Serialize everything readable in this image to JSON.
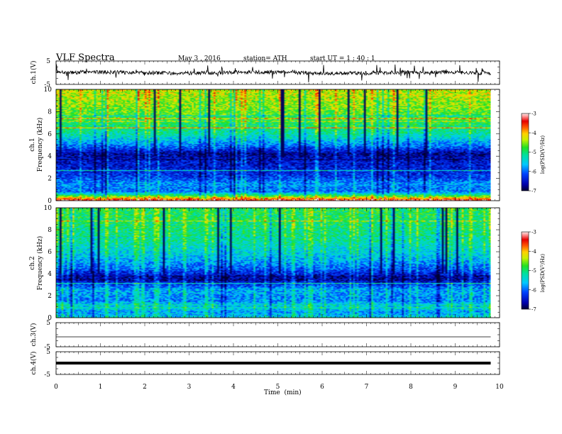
{
  "header": {
    "title": "VLF  Spectra",
    "date": "May 3  , 2016",
    "station": "station= ATH",
    "start": "start  UT  =   1  : 40 : 1"
  },
  "chart_data": [
    {
      "type": "line",
      "panel": "ch1-waveform",
      "ylabel": "ch.1(V)",
      "ylim": [
        -5,
        5
      ],
      "y_ticks": [
        "5",
        "-5"
      ],
      "xlim": [
        0,
        10
      ],
      "line_color": "#000000"
    },
    {
      "type": "heatmap",
      "panel": "ch1-spectrogram",
      "ylabel": "ch.1\nFrequency (kHz)",
      "ylim": [
        0,
        10
      ],
      "y_ticks": [
        "0",
        "2",
        "4",
        "6",
        "8",
        "10"
      ],
      "xlim": [
        0,
        9.8
      ],
      "colorbar": {
        "label": "log(PSD(V²/Hz)",
        "range": [
          -7,
          -3
        ],
        "ticks": [
          "-3",
          "-4",
          "-5",
          "-6",
          "-7"
        ]
      },
      "level_profile": [
        {
          "freq_khz": 0.0,
          "log_psd": -3.3
        },
        {
          "freq_khz": 0.4,
          "log_psd": -4.8
        },
        {
          "freq_khz": 0.8,
          "log_psd": -6.0
        },
        {
          "freq_khz": 1.5,
          "log_psd": -5.8
        },
        {
          "freq_khz": 2.0,
          "log_psd": -6.2
        },
        {
          "freq_khz": 2.8,
          "log_psd": -6.4
        },
        {
          "freq_khz": 3.5,
          "log_psd": -6.5
        },
        {
          "freq_khz": 4.2,
          "log_psd": -6.7
        },
        {
          "freq_khz": 5.0,
          "log_psd": -5.9
        },
        {
          "freq_khz": 6.0,
          "log_psd": -5.2
        },
        {
          "freq_khz": 7.0,
          "log_psd": -4.9
        },
        {
          "freq_khz": 8.5,
          "log_psd": -4.5
        },
        {
          "freq_khz": 10.0,
          "log_psd": -4.3
        }
      ]
    },
    {
      "type": "heatmap",
      "panel": "ch2-spectrogram",
      "ylabel": "ch.2\nFrequency (kHz)",
      "ylim": [
        0,
        10
      ],
      "y_ticks": [
        "0",
        "2",
        "4",
        "6",
        "8",
        "10"
      ],
      "xlim": [
        0,
        9.8
      ],
      "colorbar": {
        "label": "log(PSD(V²/Hz)",
        "range": [
          -7,
          -3
        ],
        "ticks": [
          "-3",
          "-4",
          "-5",
          "-6",
          "-7"
        ]
      },
      "level_profile": [
        {
          "freq_khz": 0.0,
          "log_psd": -5.5
        },
        {
          "freq_khz": 0.5,
          "log_psd": -5.8
        },
        {
          "freq_khz": 1.0,
          "log_psd": -5.2
        },
        {
          "freq_khz": 1.5,
          "log_psd": -5.9
        },
        {
          "freq_khz": 2.5,
          "log_psd": -5.7
        },
        {
          "freq_khz": 3.5,
          "log_psd": -6.8
        },
        {
          "freq_khz": 4.0,
          "log_psd": -6.4
        },
        {
          "freq_khz": 4.6,
          "log_psd": -6.0
        },
        {
          "freq_khz": 5.5,
          "log_psd": -5.6
        },
        {
          "freq_khz": 7.0,
          "log_psd": -5.2
        },
        {
          "freq_khz": 8.5,
          "log_psd": -5.0
        },
        {
          "freq_khz": 10.0,
          "log_psd": -4.9
        }
      ]
    },
    {
      "type": "line",
      "panel": "ch3-waveform",
      "ylabel": "ch.3(V)",
      "ylim": [
        -5,
        5
      ],
      "y_ticks": [
        "5",
        "-5"
      ],
      "values_const": 0
    },
    {
      "type": "line",
      "panel": "ch4-waveform",
      "ylabel": "ch.4(V)",
      "ylim": [
        -5,
        5
      ],
      "y_ticks": [
        "5",
        "-5"
      ],
      "values_const": 0,
      "xlabel": "Time  (min)",
      "x_ticks": [
        "0",
        "1",
        "2",
        "3",
        "4",
        "5",
        "6",
        "7",
        "8",
        "9",
        "10"
      ],
      "xlim": [
        0,
        10
      ]
    }
  ]
}
